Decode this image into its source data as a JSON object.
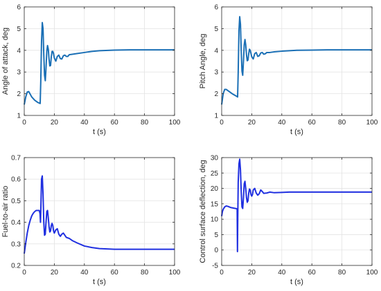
{
  "chart_data": [
    {
      "type": "line",
      "xlabel": "t (s)",
      "ylabel": "Angle of attack, deg",
      "xlim": [
        0,
        100
      ],
      "ylim": [
        1,
        6
      ],
      "xticks": [
        0,
        20,
        40,
        60,
        80,
        100
      ],
      "yticks": [
        1,
        2,
        3,
        4,
        5,
        6
      ],
      "grid": true,
      "line_color": "#1a6fb5",
      "series": [
        {
          "x": [
            0,
            1,
            2,
            3,
            5,
            7,
            9,
            10,
            10.6,
            11,
            11.5,
            12,
            12.5,
            13,
            13.5,
            14,
            14.5,
            15,
            15.5,
            16,
            16.5,
            17,
            17.5,
            18,
            18.5,
            19,
            19.5,
            20,
            21,
            22,
            23,
            24,
            25,
            26,
            27,
            28,
            29,
            30,
            32,
            35,
            40,
            45,
            50,
            60,
            70,
            80,
            90,
            100
          ],
          "y": [
            1.5,
            1.85,
            2.08,
            2.1,
            1.85,
            1.7,
            1.6,
            1.57,
            1.55,
            2.6,
            4.4,
            5.28,
            5.0,
            3.8,
            2.85,
            2.6,
            3.2,
            3.95,
            4.22,
            4.05,
            3.6,
            3.28,
            3.3,
            3.7,
            3.95,
            3.95,
            3.85,
            3.65,
            3.5,
            3.72,
            3.78,
            3.62,
            3.6,
            3.75,
            3.78,
            3.72,
            3.72,
            3.8,
            3.82,
            3.85,
            3.9,
            3.95,
            3.98,
            4.01,
            4.02,
            4.02,
            4.02,
            4.02
          ]
        }
      ]
    },
    {
      "type": "line",
      "xlabel": "t (s)",
      "ylabel": "Pitch Angle, deg",
      "xlim": [
        0,
        100
      ],
      "ylim": [
        1,
        6
      ],
      "xticks": [
        0,
        20,
        40,
        60,
        80,
        100
      ],
      "yticks": [
        1,
        2,
        3,
        4,
        5,
        6
      ],
      "grid": true,
      "line_color": "#1a6fb5",
      "series": [
        {
          "x": [
            0,
            1,
            2,
            3,
            5,
            7,
            9,
            10,
            10.6,
            11,
            11.5,
            12,
            12.5,
            13,
            13.5,
            14,
            14.5,
            15,
            15.5,
            16,
            16.5,
            17,
            17.5,
            18,
            18.5,
            19,
            19.5,
            20,
            21,
            22,
            23,
            24,
            25,
            26,
            27,
            28,
            29,
            30,
            32,
            35,
            40,
            45,
            50,
            60,
            70,
            80,
            90,
            100
          ],
          "y": [
            1.5,
            2.0,
            2.2,
            2.2,
            2.1,
            2.0,
            1.92,
            1.88,
            1.85,
            3.0,
            4.9,
            5.55,
            5.2,
            4.0,
            3.05,
            2.85,
            3.5,
            4.25,
            4.5,
            4.25,
            3.8,
            3.52,
            3.55,
            3.85,
            4.05,
            4.0,
            3.85,
            3.7,
            3.6,
            3.85,
            3.9,
            3.72,
            3.75,
            3.88,
            3.9,
            3.82,
            3.84,
            3.9,
            3.9,
            3.93,
            3.96,
            3.98,
            4.0,
            4.01,
            4.02,
            4.02,
            4.02,
            4.02
          ]
        }
      ]
    },
    {
      "type": "line",
      "xlabel": "t (s)",
      "ylabel": "Fuel-to-air ratio",
      "xlim": [
        0,
        100
      ],
      "ylim": [
        0.2,
        0.7
      ],
      "xticks": [
        0,
        20,
        40,
        60,
        80,
        100
      ],
      "yticks": [
        0.2,
        0.3,
        0.4,
        0.5,
        0.6,
        0.7
      ],
      "grid": true,
      "line_color": "#1f2fe0",
      "series": [
        {
          "x": [
            0,
            1,
            2,
            3,
            4,
            5,
            6,
            7,
            8,
            9,
            10,
            10.5,
            10.8,
            11,
            11.5,
            12,
            12.5,
            13,
            13.5,
            14,
            14.5,
            15,
            15.5,
            16,
            16.5,
            17,
            17.5,
            18,
            18.5,
            19,
            19.5,
            20,
            21,
            22,
            23,
            24,
            25,
            26,
            27,
            28,
            30,
            32,
            35,
            40,
            45,
            50,
            60,
            70,
            80,
            90,
            100
          ],
          "y": [
            0.255,
            0.305,
            0.35,
            0.385,
            0.41,
            0.43,
            0.442,
            0.45,
            0.455,
            0.455,
            0.455,
            0.44,
            0.4,
            0.45,
            0.6,
            0.615,
            0.53,
            0.4,
            0.34,
            0.345,
            0.4,
            0.45,
            0.455,
            0.42,
            0.38,
            0.355,
            0.36,
            0.385,
            0.395,
            0.385,
            0.36,
            0.35,
            0.365,
            0.37,
            0.345,
            0.335,
            0.345,
            0.35,
            0.34,
            0.33,
            0.325,
            0.315,
            0.305,
            0.29,
            0.283,
            0.278,
            0.275,
            0.275,
            0.275,
            0.275,
            0.275
          ]
        }
      ]
    },
    {
      "type": "line",
      "xlabel": "t (s)",
      "ylabel": "Control surface deflection, deg",
      "xlim": [
        0,
        100
      ],
      "ylim": [
        -5,
        30
      ],
      "xticks": [
        0,
        20,
        40,
        60,
        80,
        100
      ],
      "yticks": [
        -5,
        0,
        5,
        10,
        15,
        20,
        25,
        30
      ],
      "grid": true,
      "line_color": "#1f2fe0",
      "series": [
        {
          "x": [
            0,
            0.5,
            1,
            2,
            3,
            4,
            5,
            6,
            7,
            8,
            9,
            10,
            10.3,
            10.5,
            10.7,
            11,
            11.5,
            12,
            12.5,
            13,
            13.5,
            14,
            14.5,
            15,
            15.5,
            16,
            16.5,
            17,
            17.5,
            18,
            18.5,
            19,
            19.5,
            20,
            20.5,
            21,
            22,
            23,
            24,
            25,
            26,
            27,
            28,
            30,
            32,
            35,
            40,
            45,
            50,
            60,
            70,
            80,
            90,
            100
          ],
          "y": [
            11,
            12.5,
            13.2,
            14,
            14.3,
            14.2,
            14,
            13.8,
            13.7,
            13.6,
            13.5,
            13.4,
            13.2,
            -0.5,
            10,
            22,
            28,
            29.5,
            26,
            19,
            14,
            13.5,
            17,
            21.5,
            22.3,
            20,
            17,
            15.5,
            16,
            18.5,
            19.8,
            19.5,
            18,
            17.5,
            18,
            19.5,
            20,
            18.5,
            17.8,
            18.3,
            19.5,
            19,
            18.4,
            18.5,
            18.8,
            18.6,
            18.7,
            18.8,
            18.8,
            18.8,
            18.8,
            18.8,
            18.8,
            18.8
          ]
        }
      ]
    }
  ]
}
